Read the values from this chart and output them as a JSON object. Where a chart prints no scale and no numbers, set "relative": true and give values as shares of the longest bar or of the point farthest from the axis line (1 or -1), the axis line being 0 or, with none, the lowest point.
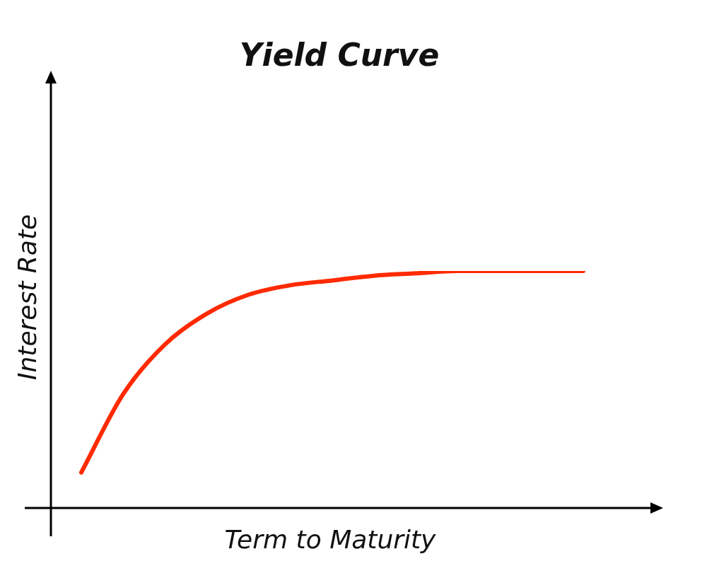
{
  "chart_data": {
    "type": "line",
    "title": "Yield Curve",
    "xlabel": "Term to Maturity",
    "ylabel": "Interest Rate",
    "relative": true,
    "categories": [
      null,
      null,
      null,
      null,
      null,
      null,
      null,
      null,
      null,
      null,
      null,
      null,
      null
    ],
    "series": [
      {
        "color": "#ff2a00",
        "values": [
          0.15,
          0.48,
          0.69,
          0.82,
          0.9,
          0.94,
          0.96,
          0.98,
          0.99,
          1,
          1,
          1,
          1
        ]
      }
    ]
  }
}
